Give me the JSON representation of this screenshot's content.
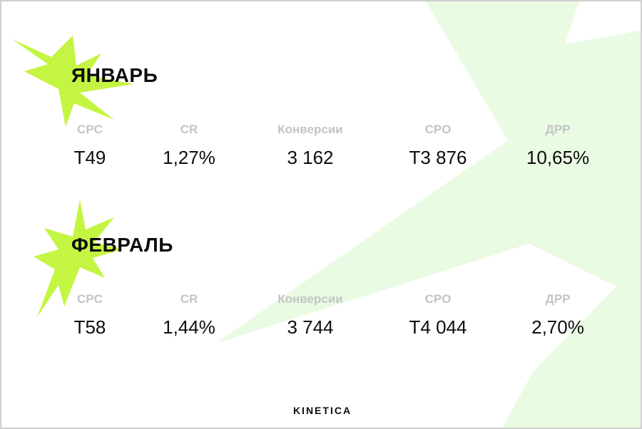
{
  "sections": [
    {
      "title": "ЯНВАРЬ",
      "metrics": [
        {
          "label": "CPC",
          "value": "T49"
        },
        {
          "label": "CR",
          "value": "1,27%"
        },
        {
          "label": "Конверсии",
          "value": "3 162"
        },
        {
          "label": "CPO",
          "value": "T3 876"
        },
        {
          "label": "ДРР",
          "value": "10,65%"
        }
      ]
    },
    {
      "title": "ФЕВРАЛЬ",
      "metrics": [
        {
          "label": "CPC",
          "value": "T58"
        },
        {
          "label": "CR",
          "value": "1,44%"
        },
        {
          "label": "Конверсии",
          "value": "3 744"
        },
        {
          "label": "CPO",
          "value": "T4 044"
        },
        {
          "label": "ДРР",
          "value": "2,70%"
        }
      ]
    }
  ],
  "brand": "KINETICA",
  "colors": {
    "accent": "#c4f542",
    "background_shape": "#eafbe3",
    "label": "#c4c4c4",
    "text": "#0d0d0d"
  }
}
